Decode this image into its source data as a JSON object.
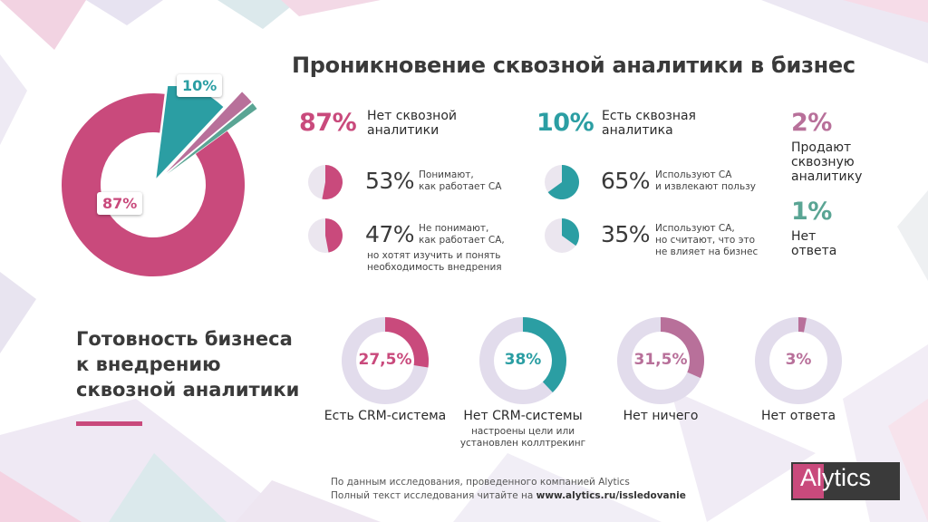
{
  "title": "Проникновение сквозной аналитики в бизнес",
  "colors": {
    "pink": "#c94a7c",
    "teal": "#2b9ea3",
    "mauve": "#b8709a",
    "grey_green": "#5aa594",
    "track": "#e2dcec"
  },
  "chart_data": [
    {
      "type": "pie",
      "categories": [
        "Нет сквозной аналитики",
        "Есть сквозная аналитика",
        "Продают сквозную аналитику",
        "Нет ответа"
      ],
      "values": [
        87,
        10,
        2,
        1
      ],
      "data_labels": [
        "87%",
        "10%",
        "",
        ""
      ]
    },
    {
      "type": "pie",
      "group": "Нет сквозной аналитики",
      "total": {
        "value": "87%",
        "label": "Нет сквозной\nаналитики"
      },
      "items": [
        {
          "value": 53,
          "pct": "53%",
          "text": "Понимают,\nкак работает СА"
        },
        {
          "value": 47,
          "pct": "47%",
          "text": "Не понимают,\nкак работает СА,",
          "extra": "но хотят изучить и понять\nнеобходимость внедрения"
        }
      ]
    },
    {
      "type": "pie",
      "group": "Есть сквозная аналитика",
      "total": {
        "value": "10%",
        "label": "Есть сквозная\nаналитика"
      },
      "items": [
        {
          "value": 65,
          "pct": "65%",
          "text": "Используют СА\nи извлекают пользу"
        },
        {
          "value": 35,
          "pct": "35%",
          "text": "Используют СА,\nно считают, что это\nне влияет на бизнес"
        }
      ]
    },
    {
      "type": "pie",
      "side_stats": [
        {
          "value": "2%",
          "label": "Продают\nсквозную\nаналитику"
        },
        {
          "value": "1%",
          "label": "Нет\nответа"
        }
      ]
    },
    {
      "type": "pie",
      "title": "Готовность бизнеса\nк внедрению\nсквозной аналитики",
      "categories": [
        "Есть CRM-система",
        "Нет CRM-системы",
        "Нет ничего",
        "Нет ответа"
      ],
      "values": [
        27.5,
        38,
        31.5,
        3
      ],
      "data_labels": [
        "27,5%",
        "38%",
        "31,5%",
        "3%"
      ],
      "sublabels": [
        "",
        "настроены цели или\nустановлен коллтрекинг",
        "",
        ""
      ]
    }
  ],
  "footer": {
    "line1": "По данным исследования, проведенного компанией Alytics",
    "line2_prefix": "Полный текст исследования читайте на ",
    "line2_link": "www.alytics.ru/issledovanie"
  },
  "logo": {
    "text": "Alytics"
  }
}
